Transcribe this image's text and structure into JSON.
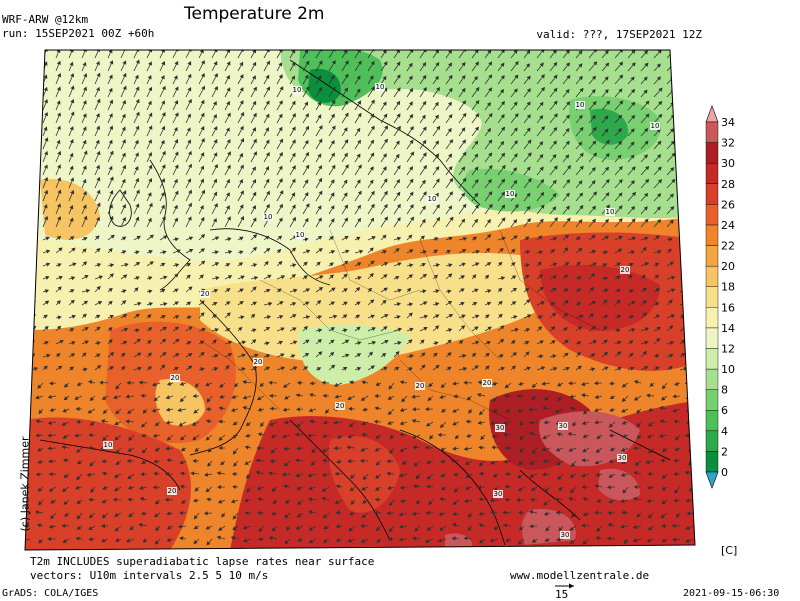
{
  "header": {
    "model": "WRF-ARW @12km",
    "run": "run: 15SEP2021 00Z +60h",
    "title": "Temperature 2m",
    "valid": "valid: ???, 17SEP2021 12Z"
  },
  "footer": {
    "note1": "T2m INCLUDES superadiabatic lapse rates near surface",
    "note2": "vectors: U10m intervals 2.5 5 10 m/s",
    "website": "www.modellzentrale.de",
    "grads": "GrADS: COLA/IGES",
    "timestamp": "2021-09-15-06:30",
    "vector_ref": "15",
    "copyright": "(c) Janek Zimmer"
  },
  "colorbar": {
    "unit": "[C]",
    "levels": [
      "0",
      "2",
      "4",
      "6",
      "8",
      "10",
      "12",
      "14",
      "16",
      "18",
      "20",
      "22",
      "24",
      "26",
      "28",
      "30",
      "32",
      "34"
    ],
    "colors": [
      "#0a8f3c",
      "#2ea84a",
      "#4fbf5a",
      "#79d070",
      "#a6e08e",
      "#cdeea9",
      "#eef6c8",
      "#f7f1b0",
      "#f8e08a",
      "#f6c463",
      "#f3a63f",
      "#ef852b",
      "#e8612a",
      "#d8402a",
      "#c52a27",
      "#ad1f24",
      "#c9575c",
      "#e58a8f"
    ],
    "below_color": "#2fa3c8",
    "above_color": "#f2a3a6"
  },
  "map": {
    "contour_labels": [
      "10",
      "10",
      "10",
      "10",
      "10",
      "10",
      "10",
      "10",
      "20",
      "20",
      "20",
      "20",
      "20",
      "20",
      "30",
      "30",
      "30",
      "30",
      "30",
      "20",
      "10",
      "10",
      "20"
    ]
  }
}
